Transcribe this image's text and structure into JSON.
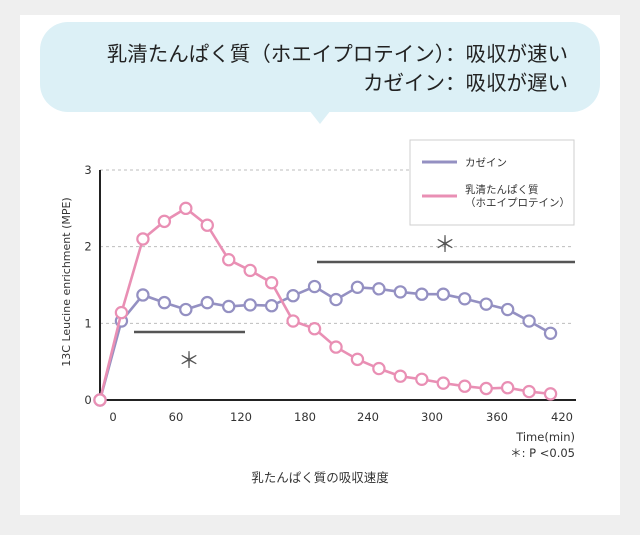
{
  "headline": {
    "line1": "乳清たんぱく質（ホエイプロテイン）：吸収が速い",
    "line2": "カゼイン：吸収が遅い"
  },
  "chart_data": {
    "type": "line",
    "title": "",
    "xlabel": "Time(min)",
    "ylabel": "13C Leucine enrichment (MPE)",
    "caption": "乳たんぱく質の吸収速度",
    "significance_note": "＊: P <0.05",
    "significance_marks": [
      "＊",
      "＊"
    ],
    "xlim": [
      -10,
      430
    ],
    "ylim": [
      0,
      3
    ],
    "x_ticks": [
      "0",
      "60",
      "120",
      "180",
      "240",
      "300",
      "360",
      "420"
    ],
    "y_ticks": [
      "0",
      "1",
      "2",
      "3"
    ],
    "grid": "horizontal-dashed",
    "legend_position": "top-right",
    "x": [
      -10,
      10,
      30,
      50,
      70,
      90,
      110,
      130,
      150,
      170,
      190,
      210,
      230,
      250,
      270,
      290,
      310,
      330,
      350,
      370,
      390,
      410,
      430
    ],
    "series": [
      {
        "name": "カゼイン",
        "color": "#9490c2",
        "values": [
          0,
          1.03,
          1.37,
          1.27,
          1.18,
          1.27,
          1.22,
          1.24,
          1.23,
          1.36,
          1.48,
          1.31,
          1.47,
          1.45,
          1.41,
          1.38,
          1.38,
          1.32,
          1.25,
          1.18,
          1.03,
          0.87,
          null
        ]
      },
      {
        "name": "乳清たんぱく質\n（ホエイプロテイン）",
        "color": "#e98fb4",
        "values": [
          0,
          1.14,
          2.1,
          2.33,
          2.5,
          2.28,
          1.83,
          1.69,
          1.53,
          1.03,
          0.93,
          0.69,
          0.53,
          0.41,
          0.31,
          0.27,
          0.22,
          0.18,
          0.15,
          0.16,
          0.11,
          0.08,
          null
        ]
      }
    ]
  }
}
